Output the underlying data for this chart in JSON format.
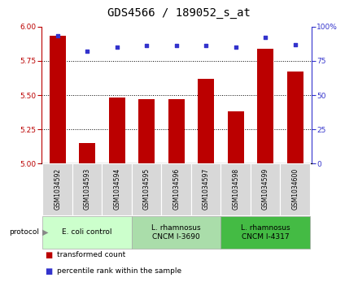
{
  "title": "GDS4566 / 189052_s_at",
  "samples": [
    "GSM1034592",
    "GSM1034593",
    "GSM1034594",
    "GSM1034595",
    "GSM1034596",
    "GSM1034597",
    "GSM1034598",
    "GSM1034599",
    "GSM1034600"
  ],
  "transformed_count": [
    5.93,
    5.15,
    5.48,
    5.47,
    5.47,
    5.62,
    5.38,
    5.84,
    5.67
  ],
  "percentile_rank": [
    93,
    82,
    85,
    86,
    86,
    86,
    85,
    92,
    87
  ],
  "ylim_left": [
    5.0,
    6.0
  ],
  "ylim_right": [
    0,
    100
  ],
  "yticks_left": [
    5.0,
    5.25,
    5.5,
    5.75,
    6.0
  ],
  "yticks_right": [
    0,
    25,
    50,
    75,
    100
  ],
  "bar_color": "#bb0000",
  "dot_color": "#3333cc",
  "protocols": [
    {
      "label": "E. coli control",
      "start": 0,
      "end": 3,
      "color": "#ccffcc"
    },
    {
      "label": "L. rhamnosus\nCNCM I-3690",
      "start": 3,
      "end": 6,
      "color": "#aaddaa"
    },
    {
      "label": "L. rhamnosus\nCNCM I-4317",
      "start": 6,
      "end": 9,
      "color": "#44bb44"
    }
  ],
  "legend_labels": [
    "transformed count",
    "percentile rank within the sample"
  ],
  "legend_colors": [
    "#bb0000",
    "#3333cc"
  ],
  "title_fontsize": 10,
  "tick_fontsize": 6.5,
  "sample_fontsize": 5.5,
  "proto_fontsize": 6.5,
  "legend_fontsize": 6.5
}
